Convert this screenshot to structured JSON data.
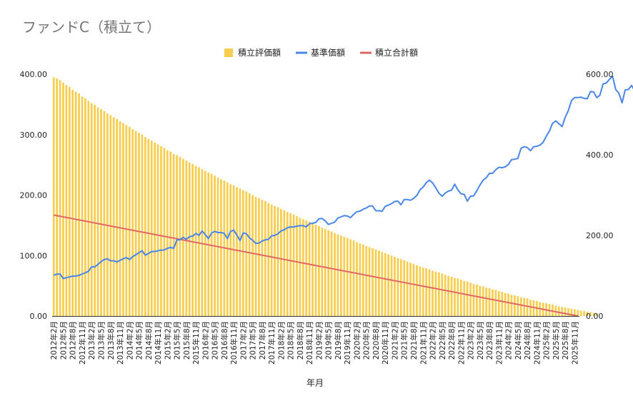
{
  "chart_data": {
    "title": "ファンドC（積立て）",
    "type": "bar+line",
    "xlabel": "年月",
    "legend_position": "top",
    "grid": false,
    "y_left": {
      "min": 0,
      "max": 400,
      "ticks": [
        "0.00",
        "100.00",
        "200.00",
        "300.00",
        "400.00"
      ]
    },
    "y_right": {
      "min": 0,
      "max": 600,
      "ticks": [
        "0.00",
        "200.00",
        "400.00",
        "600.00"
      ]
    },
    "x_start": {
      "year": 2012,
      "month": 2
    },
    "x_end": {
      "year": 2025,
      "month": 12
    },
    "x_tick_labels": [
      "2012年2月",
      "2012年5月",
      "2012年8月",
      "2012年11月",
      "2013年2月",
      "2013年5月",
      "2013年8月",
      "2013年11月",
      "2014年2月",
      "2014年5月",
      "2014年8月",
      "2014年11月",
      "2015年2月",
      "2015年5月",
      "2015年8月",
      "2015年11月",
      "2016年2月",
      "2016年5月",
      "2016年8月",
      "2016年11月",
      "2017年2月",
      "2017年5月",
      "2017年8月",
      "2017年11月",
      "2018年2月",
      "2018年5月",
      "2018年8月",
      "2018年11月",
      "2019年2月",
      "2019年5月",
      "2019年8月",
      "2019年11月",
      "2020年2月",
      "2020年5月",
      "2020年8月",
      "2020年11月",
      "2021年2月",
      "2021年5月",
      "2021年8月",
      "2021年11月",
      "2022年2月",
      "2022年5月",
      "2022年8月",
      "2022年11月",
      "2023年2月",
      "2023年5月",
      "2023年8月",
      "2023年11月",
      "2024年2月",
      "2024年5月",
      "2024年8月",
      "2024年11月",
      "2025年2月",
      "2025年5月",
      "2025年8月",
      "2025年11月"
    ],
    "series": [
      {
        "name": "積立評価額",
        "type": "bar",
        "axis": "left",
        "color": "#f6cd4e",
        "values": [
          395,
          393,
          390,
          386,
          382,
          379,
          374,
          371,
          368,
          363,
          360,
          356,
          352,
          349,
          345,
          342,
          339,
          335,
          332,
          329,
          326,
          322,
          319,
          316,
          313,
          309,
          306,
          303,
          300,
          296,
          293,
          290,
          287,
          284,
          281,
          278,
          274,
          272,
          268,
          266,
          263,
          260,
          257,
          254,
          251,
          248,
          246,
          243,
          240,
          237,
          235,
          232,
          229,
          226,
          224,
          221,
          218,
          216,
          213,
          211,
          208,
          206,
          203,
          200,
          197,
          195,
          192,
          190,
          187,
          184,
          182,
          180,
          177,
          175,
          172,
          170,
          168,
          165,
          162,
          160,
          158,
          156,
          153,
          151,
          149,
          146,
          144,
          142,
          140,
          137,
          135,
          133,
          131,
          129,
          127,
          125,
          122,
          120,
          118,
          116,
          114,
          112,
          110,
          108,
          106,
          104,
          102,
          100,
          98,
          96,
          94,
          92,
          90,
          88,
          86,
          84,
          82,
          80,
          79,
          77,
          75,
          73,
          72,
          70,
          68,
          66,
          65,
          63,
          62,
          60,
          58,
          57,
          55,
          53,
          52,
          50,
          49,
          47,
          46,
          44,
          43,
          41,
          40,
          38,
          37,
          35,
          34,
          33,
          31,
          30,
          29,
          27,
          26,
          25,
          23,
          22,
          21,
          20,
          19,
          17,
          16,
          15,
          14,
          13,
          12,
          11,
          10,
          9,
          8,
          7,
          6,
          5,
          3
        ]
      },
      {
        "name": "基準価額",
        "type": "line",
        "axis": "right",
        "color": "#4a86e8",
        "values": [
          101,
          104,
          104,
          93,
          95,
          97,
          99,
          99,
          101,
          104,
          107,
          111,
          122,
          122,
          128,
          135,
          140,
          142,
          137,
          137,
          134,
          138,
          142,
          145,
          140,
          147,
          152,
          157,
          162,
          151,
          155,
          160,
          160,
          162,
          163,
          164,
          168,
          170,
          168,
          189,
          189,
          195,
          190,
          197,
          198,
          205,
          200,
          211,
          202,
          192,
          206,
          210,
          207,
          207,
          205,
          192,
          210,
          213,
          201,
          187,
          206,
          204,
          194,
          188,
          180,
          181,
          186,
          189,
          190,
          199,
          200,
          204,
          211,
          214,
          219,
          221,
          221,
          223,
          224,
          224,
          221,
          229,
          230,
          232,
          241,
          242,
          236,
          227,
          230,
          233,
          243,
          246,
          249,
          248,
          244,
          252,
          259,
          260,
          265,
          268,
          273,
          273,
          261,
          261,
          260,
          272,
          275,
          279,
          284,
          285,
          276,
          289,
          289,
          287,
          292,
          299,
          313,
          320,
          331,
          337,
          330,
          318,
          305,
          297,
          305,
          310,
          312,
          327,
          313,
          303,
          302,
          285,
          297,
          298,
          311,
          325,
          337,
          343,
          354,
          354,
          363,
          369,
          368,
          370,
          376,
          388,
          389,
          391,
          416,
          420,
          418,
          410,
          420,
          421,
          424,
          431,
          446,
          459,
          478,
          484,
          477,
          470,
          493,
          510,
          535,
          542,
          542,
          543,
          540,
          539,
          557,
          556,
          542,
          548,
          576,
          578,
          587,
          595,
          562,
          553,
          529,
          561,
          562,
          572,
          559,
          545,
          547,
          550
        ]
      },
      {
        "name": "積立合計額",
        "type": "line",
        "axis": "left",
        "color": "#e06666",
        "start": 167,
        "end": 0
      }
    ]
  }
}
